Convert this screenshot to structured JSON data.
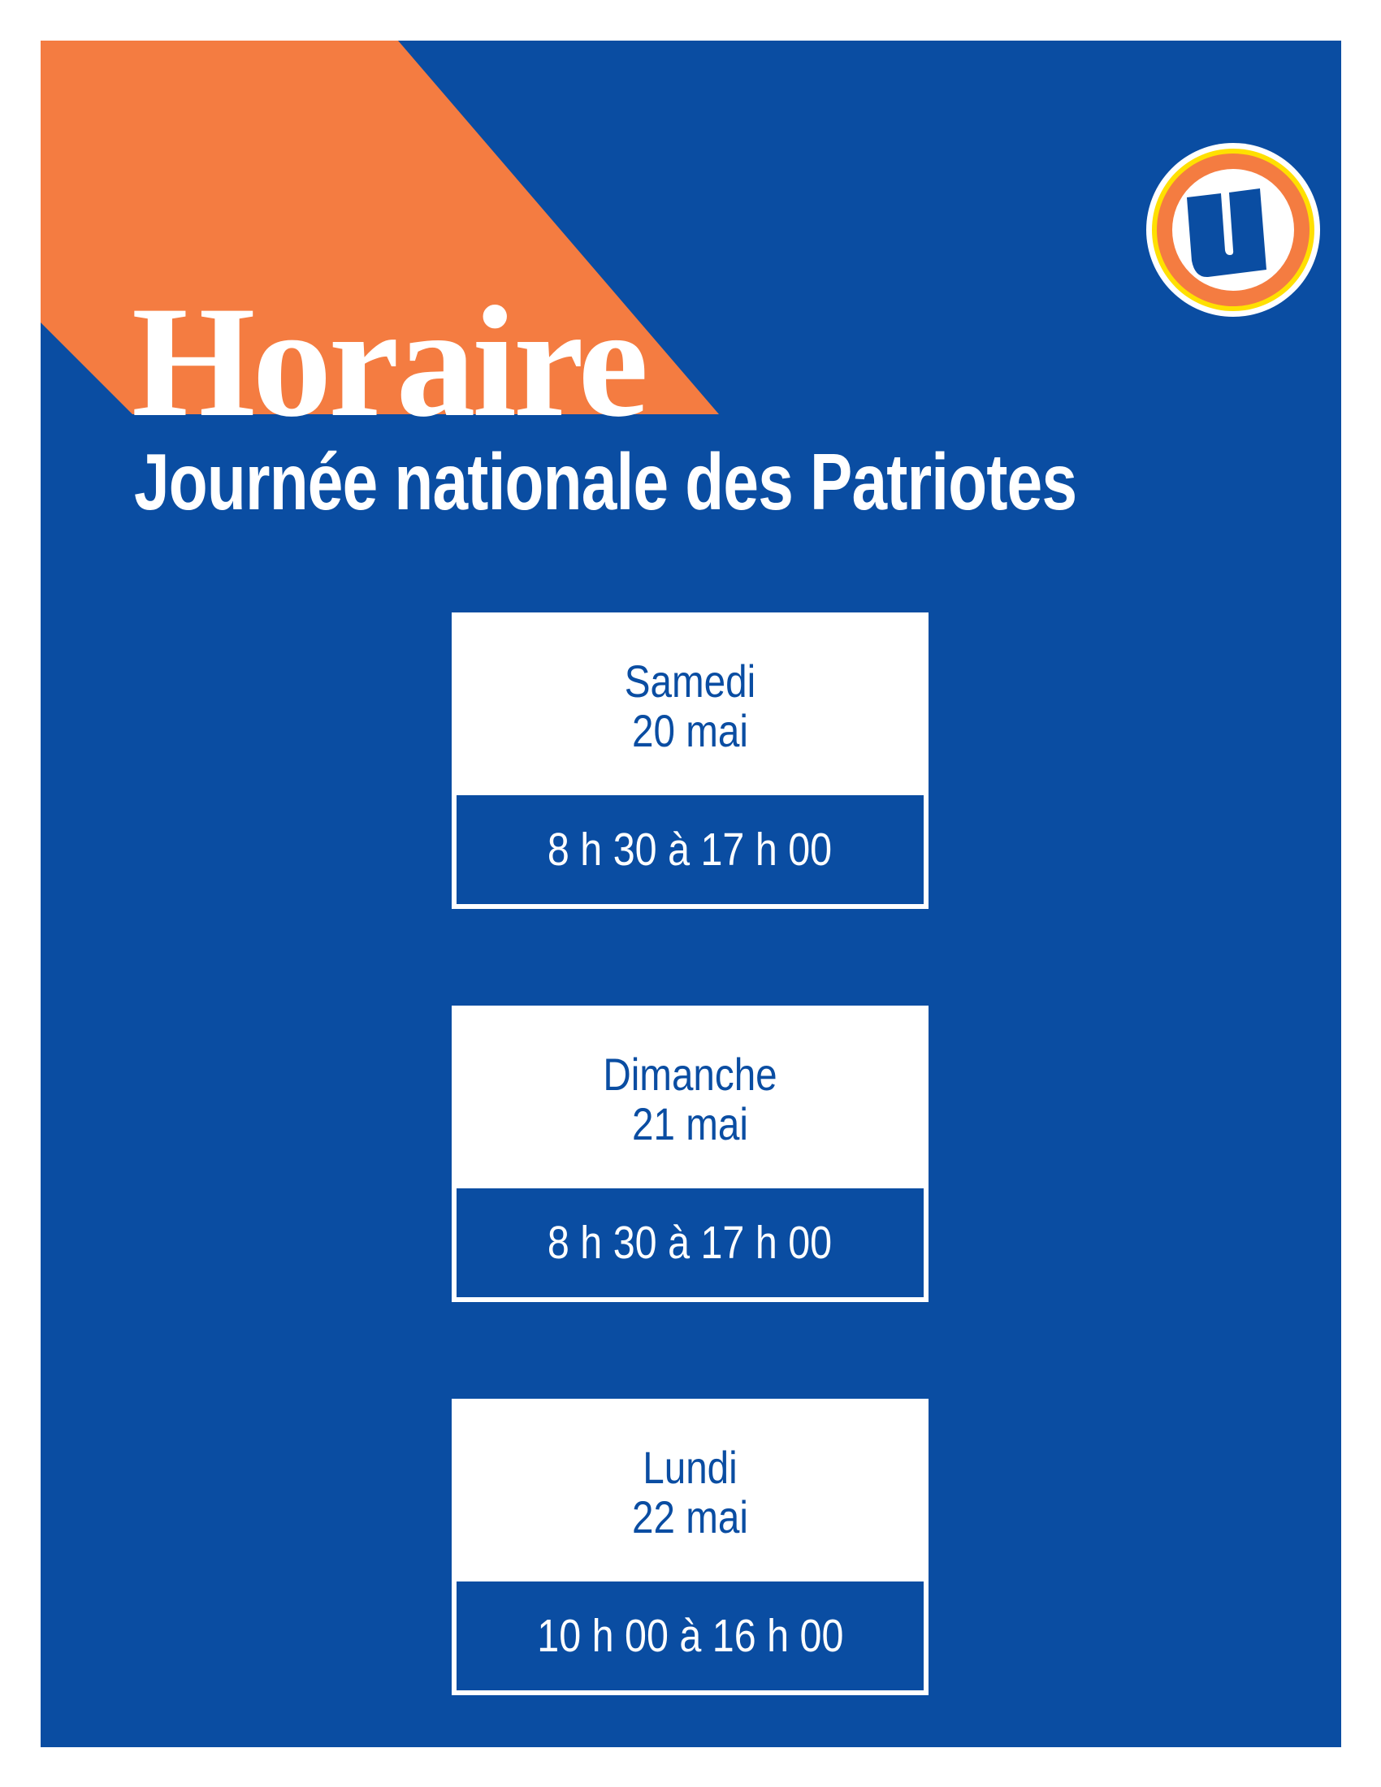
{
  "colors": {
    "brand_blue": "#0a4da2",
    "accent_orange": "#f47c41",
    "logo_yellow": "#ffe000"
  },
  "logo": {
    "icon": "u-logo-icon",
    "letter": "U"
  },
  "header": {
    "title": "Horaire",
    "subtitle": "Journée nationale des Patriotes"
  },
  "schedule": [
    {
      "day": "Samedi",
      "date": "20 mai",
      "hours": "8 h 30 à 17 h 00"
    },
    {
      "day": "Dimanche",
      "date": "21 mai",
      "hours": "8 h 30 à 17 h 00"
    },
    {
      "day": "Lundi",
      "date": "22 mai",
      "hours": "10 h 00 à 16 h 00"
    }
  ]
}
